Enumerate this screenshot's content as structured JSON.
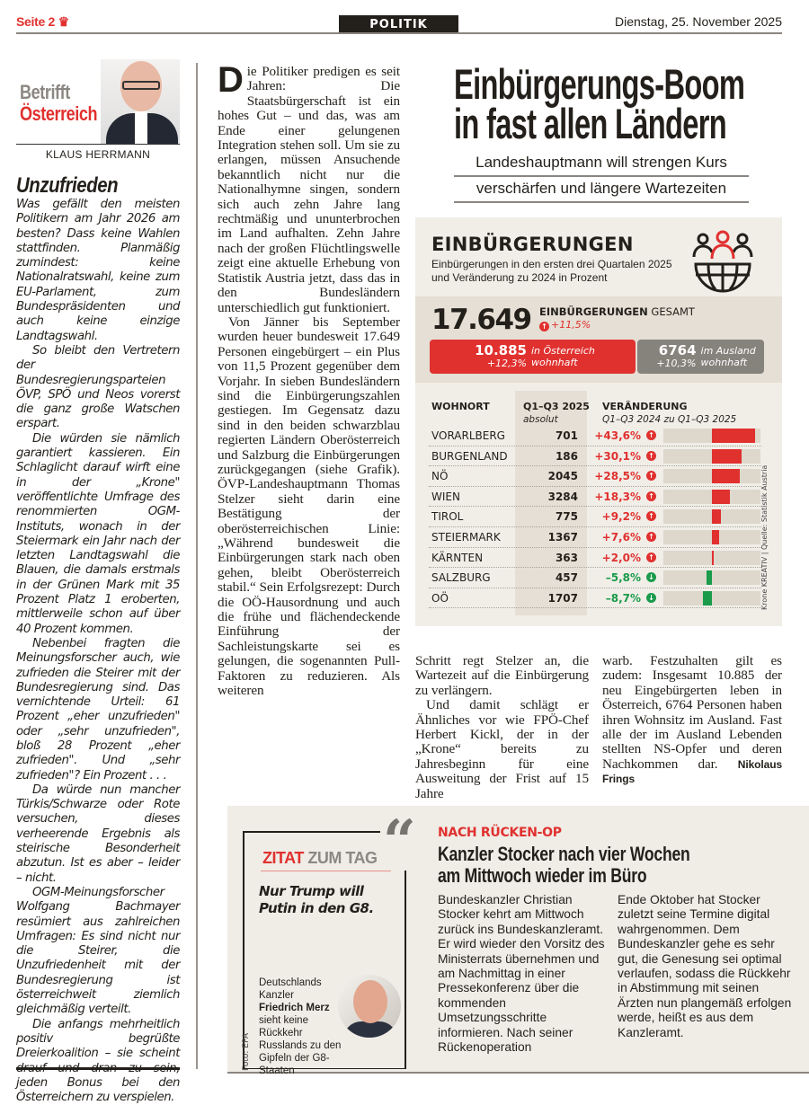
{
  "header": {
    "page": "Seite 2",
    "crown_icon": "crown-icon",
    "section": "POLITIK",
    "date": "Dienstag, 25. November 2025"
  },
  "column": {
    "rubric_line1": "Betrifft",
    "rubric_line2": "Österreich",
    "author": "KLAUS HERRMANN",
    "title": "Unzufrieden",
    "paragraphs": [
      "Was gefällt den meisten Politikern am Jahr 2026 am besten? Dass keine Wahlen stattfinden. Planmäßig zumindest: keine Nationalratswahl, keine zum EU-Parlament, zum Bundespräsidenten und auch keine einzige Landtagswahl.",
      "So bleibt den Vertretern der Bundesregierungsparteien ÖVP, SPÖ und Neos vorerst die ganz große Watschen erspart.",
      "Die würden sie nämlich garantiert kassieren. Ein Schlaglicht darauf wirft eine in der „Krone\" veröffentlichte Umfrage des renommierten OGM-Instituts, wonach in der Steiermark ein Jahr nach der letzten Landtagswahl die Blauen, die damals erstmals in der Grünen Mark mit 35 Prozent Platz 1 eroberten, mittlerweile schon auf über 40 Prozent kommen.",
      "Nebenbei fragten die Meinungsforscher auch, wie zufrieden die Steirer mit der Bundesregierung sind. Das vernichtende Urteil: 61 Prozent „eher unzufrieden\" oder „sehr unzufrieden\", bloß 28 Prozent „eher zufrieden\". Und „sehr zufrieden\"? Ein Prozent . . .",
      "Da würde nun mancher Türkis/Schwarze oder Rote versuchen, dieses verheerende Ergebnis als steirische Besonderheit abzutun. Ist es aber – leider – nicht.",
      "OGM-Meinungsforscher Wolfgang Bachmayer resümiert aus zahlreichen Umfragen: Es sind nicht nur die Steirer, die Unzufriedenheit mit der Bundesregierung ist österreichweit ziemlich gleichmäßig verteilt.",
      "Die anfangs mehrheitlich positiv begrüßte Dreierkoalition – sie scheint drauf und dran zu sein, jeden Bonus bei den Österreichern zu verspielen."
    ]
  },
  "article": {
    "headline_line1": "Einbürgerungs-Boom",
    "headline_line2": "in fast allen Ländern",
    "subtitle_line1": "Landeshauptmann will strengen Kurs",
    "subtitle_line2": "verschärfen und längere Wartezeiten",
    "dropcap": "D",
    "col2": [
      "ie Politiker predigen es seit Jahren: Die Staatsbürgerschaft ist ein hohes Gut – und das, was am Ende einer gelungenen Integration stehen soll. Um sie zu erlangen, müssen Ansuchende bekanntlich nicht nur die Nationalhymne singen, sondern sich auch zehn Jahre lang rechtmäßig und ununterbrochen im Land aufhalten. Zehn Jahre nach der großen Flüchtlingswelle zeigt eine aktuelle Erhebung von Statistik Austria jetzt, dass das in den Bundesländern unterschiedlich gut funktioniert.",
      "Von Jänner bis September wurden heuer bundesweit 17.649 Personen eingebürgert – ein Plus von 11,5 Prozent gegenüber dem Vorjahr. In sieben Bundesländern sind die Einbürgerungszahlen gestiegen. Im Gegensatz dazu sind in den beiden schwarzblau regierten Ländern Oberösterreich und Salzburg die Einbürgerungen zurückgegangen (siehe Grafik). ÖVP-Landeshauptmann Thomas Stelzer sieht darin eine Bestätigung der oberösterreichischen Linie: „Während bundesweit die Einbürgerungen stark nach oben gehen, bleibt Oberösterreich stabil.“ Sein Erfolgsrezept: Durch die OÖ-Hausordnung und auch die frühe und flächendeckende Einführung der Sachleistungskarte sei es gelungen, die sogenannten Pull-Faktoren zu reduzieren. Als weiteren"
    ],
    "col3": [
      "Schritt regt Stelzer an, die Wartezeit auf die Einbürgerung zu verlängern.",
      "Und damit schlägt er Ähnliches vor wie FPÖ-Chef Herbert Kickl, der in der „Krone“ bereits zu Jahresbeginn für eine Ausweitung der Frist auf 15 Jahre"
    ],
    "col4": "warb. Festzuhalten gilt es zudem: Insgesamt 10.885 der neu Eingebürgerten leben in Österreich, 6764 Personen haben ihren Wohnsitz im Ausland. Fast alle der im Ausland Lebenden stellten NS-Opfer und deren Nachkommen dar.",
    "byline": "Nikolaus Frings"
  },
  "infographic": {
    "title": "EINBÜRGERUNGEN",
    "desc_line1": "Einbürgerungen in den ersten drei Quartalen 2025",
    "desc_line2": "und Veränderung zu 2024 in Prozent",
    "icon": "people-globe-icon",
    "total": "17.649",
    "total_label_bold": "EINBÜRGERUNGEN",
    "total_label": "GESAMT",
    "total_change": "+11,5%",
    "inland": {
      "value": "10.885",
      "change": "+12,3%",
      "label1": "in Österreich",
      "label2": "wohnhaft",
      "share": 61.7
    },
    "ausland": {
      "value": "6764",
      "change": "+10,3%",
      "label1": "im Ausland",
      "label2": "wohnhaft",
      "share": 38.3
    },
    "col_wohnort": "WOHNORT",
    "col_abs": "Q1–Q3 2025",
    "col_abs_sub": "absolut",
    "col_change": "VERÄNDERUNG",
    "col_change_sub": "Q1–Q3 2024 zu Q1–Q3 2025",
    "rows": [
      {
        "name": "VORARLBERG",
        "value": "701",
        "change": "+43,6%",
        "pct": 43.6
      },
      {
        "name": "BURGENLAND",
        "value": "186",
        "change": "+30,1%",
        "pct": 30.1
      },
      {
        "name": "NÖ",
        "value": "2045",
        "change": "+28,5%",
        "pct": 28.5
      },
      {
        "name": "WIEN",
        "value": "3284",
        "change": "+18,3%",
        "pct": 18.3
      },
      {
        "name": "TIROL",
        "value": "775",
        "change": "+9,2%",
        "pct": 9.2
      },
      {
        "name": "STEIERMARK",
        "value": "1367",
        "change": "+7,6%",
        "pct": 7.6
      },
      {
        "name": "KÄRNTEN",
        "value": "363",
        "change": "+2,0%",
        "pct": 2.0
      },
      {
        "name": "SALZBURG",
        "value": "457",
        "change": "–5,8%",
        "pct": -5.8
      },
      {
        "name": "OÖ",
        "value": "1707",
        "change": "–8,7%",
        "pct": -8.7
      }
    ],
    "source": "Krone KREATIV | Quelle: Statistik Austria",
    "colors": {
      "up": "#e0312f",
      "down": "#1a9b4b",
      "neutral": "#86827c"
    }
  },
  "zitat": {
    "title_red": "ZITAT",
    "title_gray": "ZUM TAG",
    "quote": "Nur Trump will Putin in den G8.",
    "desc_pre": "Deutschlands Kanzler",
    "desc_name": "Friedrich Merz",
    "desc_post": "sieht keine Rückkehr Russlands zu den Gipfeln der G8-Staaten",
    "credit": "Foto: EPA"
  },
  "story2": {
    "kicker": "NACH RÜCKEN-OP",
    "headline_line1": "Kanzler Stocker nach vier Wochen",
    "headline_line2": "am Mittwoch wieder im Büro",
    "col1": "Bundeskanzler Christian Stocker kehrt am Mittwoch zurück ins Bundeskanzleramt. Er wird wieder den Vorsitz des Ministerrats übernehmen und am Nachmittag in einer Pressekonferenz über die kommenden Umsetzungsschritte informieren. Nach seiner Rückenoperation",
    "col2": "Ende Oktober hat Stocker zuletzt seine Termine digital wahrgenommen. Dem Bundeskanzler gehe es sehr gut, die Genesung sei optimal verlaufen, sodass die Rückkehr in Abstimmung mit seinen Ärzten nun plangemäß erfolgen werde, heißt es aus dem Kanzleramt."
  }
}
